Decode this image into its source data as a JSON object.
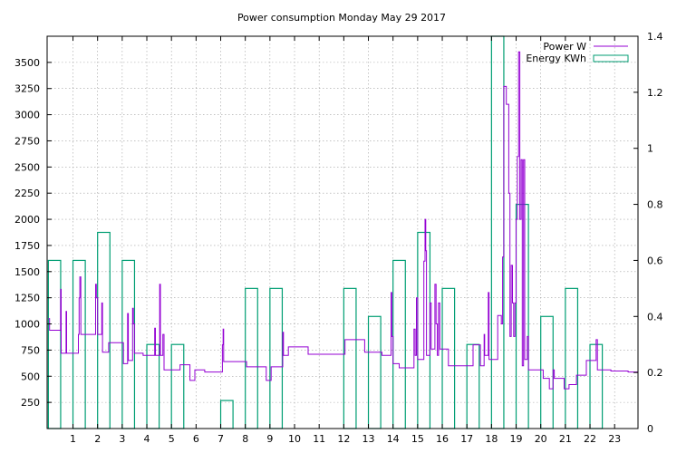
{
  "colors": {
    "power": "#9400d3",
    "energy": "#009e73",
    "grid": "#a0a0a0",
    "axis": "#000000"
  },
  "chart_data": {
    "type": "line",
    "title": "Power consumption Monday May 29 2017",
    "grid": true,
    "legend_position": "top-right",
    "xlim": [
      -0.05,
      23.95
    ],
    "ylim": [
      0,
      3750
    ],
    "y2lim": [
      0,
      1.4
    ],
    "x_ticks": [
      1,
      2,
      3,
      4,
      5,
      6,
      7,
      8,
      9,
      10,
      11,
      12,
      13,
      14,
      15,
      16,
      17,
      18,
      19,
      20,
      21,
      22,
      23
    ],
    "x_tick_labels": [
      "1",
      "2",
      "3",
      "4",
      "5",
      "6",
      "7",
      "8",
      "9",
      "10",
      "11",
      "12",
      "13",
      "14",
      "15",
      "16",
      "17",
      "18",
      "19",
      "20",
      "21",
      "22",
      "23"
    ],
    "y_ticks": [
      250,
      500,
      750,
      1000,
      1250,
      1500,
      1750,
      2000,
      2250,
      2500,
      2750,
      3000,
      3250,
      3500
    ],
    "y_tick_labels": [
      "250",
      "500",
      "750",
      "1000",
      "1250",
      "1500",
      "1750",
      "2000",
      "2250",
      "2500",
      "2750",
      "3000",
      "3250",
      "3500"
    ],
    "y2_ticks": [
      0,
      0.2,
      0.4,
      0.6,
      0.8,
      1,
      1.2,
      1.4
    ],
    "y2_tick_labels": [
      "0",
      "0.2",
      "0.4",
      "0.6",
      "0.8",
      "1",
      "1.2",
      "1.4"
    ],
    "series": [
      {
        "name": "Power W",
        "axis": "y1",
        "style": "steps",
        "points": [
          [
            0,
            1050
          ],
          [
            0.05,
            940
          ],
          [
            0.45,
            940
          ],
          [
            0.5,
            1330
          ],
          [
            0.52,
            720
          ],
          [
            0.7,
            720
          ],
          [
            0.72,
            1120
          ],
          [
            0.74,
            720
          ],
          [
            1.2,
            720
          ],
          [
            1.22,
            900
          ],
          [
            1.25,
            1250
          ],
          [
            1.28,
            1450
          ],
          [
            1.32,
            900
          ],
          [
            1.9,
            900
          ],
          [
            1.92,
            1380
          ],
          [
            1.95,
            1250
          ],
          [
            2.0,
            900
          ],
          [
            2.15,
            900
          ],
          [
            2.17,
            1200
          ],
          [
            2.2,
            730
          ],
          [
            2.4,
            730
          ],
          [
            2.45,
            820
          ],
          [
            3.0,
            820
          ],
          [
            3.05,
            620
          ],
          [
            3.2,
            620
          ],
          [
            3.22,
            1100
          ],
          [
            3.25,
            650
          ],
          [
            3.4,
            650
          ],
          [
            3.42,
            1150
          ],
          [
            3.45,
            1000
          ],
          [
            3.5,
            720
          ],
          [
            3.8,
            720
          ],
          [
            3.85,
            700
          ],
          [
            4.3,
            700
          ],
          [
            4.32,
            960
          ],
          [
            4.35,
            700
          ],
          [
            4.5,
            700
          ],
          [
            4.52,
            1380
          ],
          [
            4.55,
            700
          ],
          [
            4.62,
            700
          ],
          [
            4.65,
            900
          ],
          [
            4.7,
            560
          ],
          [
            5.3,
            560
          ],
          [
            5.35,
            610
          ],
          [
            5.7,
            610
          ],
          [
            5.75,
            460
          ],
          [
            5.9,
            460
          ],
          [
            5.95,
            560
          ],
          [
            6.3,
            560
          ],
          [
            6.35,
            540
          ],
          [
            7.05,
            540
          ],
          [
            7.07,
            800
          ],
          [
            7.1,
            950
          ],
          [
            7.12,
            640
          ],
          [
            8.0,
            640
          ],
          [
            8.05,
            590
          ],
          [
            8.8,
            590
          ],
          [
            8.85,
            460
          ],
          [
            9.0,
            460
          ],
          [
            9.05,
            590
          ],
          [
            9.5,
            590
          ],
          [
            9.52,
            920
          ],
          [
            9.55,
            700
          ],
          [
            9.7,
            700
          ],
          [
            9.75,
            780
          ],
          [
            10.5,
            780
          ],
          [
            10.55,
            710
          ],
          [
            12.0,
            710
          ],
          [
            12.05,
            850
          ],
          [
            12.8,
            850
          ],
          [
            12.85,
            730
          ],
          [
            13.5,
            730
          ],
          [
            13.55,
            700
          ],
          [
            13.9,
            700
          ],
          [
            13.92,
            1300
          ],
          [
            13.95,
            880
          ],
          [
            14.0,
            620
          ],
          [
            14.2,
            620
          ],
          [
            14.25,
            580
          ],
          [
            14.8,
            580
          ],
          [
            14.85,
            950
          ],
          [
            14.9,
            700
          ],
          [
            14.95,
            1250
          ],
          [
            15.0,
            660
          ],
          [
            15.2,
            660
          ],
          [
            15.25,
            1600
          ],
          [
            15.3,
            2000
          ],
          [
            15.33,
            1700
          ],
          [
            15.36,
            700
          ],
          [
            15.5,
            1200
          ],
          [
            15.55,
            760
          ],
          [
            15.7,
            1380
          ],
          [
            15.75,
            1000
          ],
          [
            15.8,
            700
          ],
          [
            15.85,
            1200
          ],
          [
            15.9,
            760
          ],
          [
            16.2,
            760
          ],
          [
            16.25,
            600
          ],
          [
            17.2,
            600
          ],
          [
            17.25,
            800
          ],
          [
            17.5,
            800
          ],
          [
            17.55,
            600
          ],
          [
            17.65,
            600
          ],
          [
            17.7,
            900
          ],
          [
            17.72,
            700
          ],
          [
            17.85,
            700
          ],
          [
            17.87,
            1300
          ],
          [
            17.9,
            660
          ],
          [
            18.2,
            660
          ],
          [
            18.25,
            1080
          ],
          [
            18.4,
            1000
          ],
          [
            18.45,
            1640
          ],
          [
            18.5,
            3270
          ],
          [
            18.6,
            3100
          ],
          [
            18.7,
            2250
          ],
          [
            18.75,
            880
          ],
          [
            18.8,
            1560
          ],
          [
            18.85,
            1200
          ],
          [
            18.9,
            880
          ],
          [
            18.95,
            1200
          ],
          [
            19.0,
            2000
          ],
          [
            19.05,
            2600
          ],
          [
            19.1,
            3600
          ],
          [
            19.15,
            2000
          ],
          [
            19.2,
            2570
          ],
          [
            19.25,
            600
          ],
          [
            19.3,
            2570
          ],
          [
            19.35,
            660
          ],
          [
            19.4,
            660
          ],
          [
            19.45,
            880
          ],
          [
            19.5,
            560
          ],
          [
            20.0,
            560
          ],
          [
            20.1,
            480
          ],
          [
            20.3,
            480
          ],
          [
            20.35,
            380
          ],
          [
            20.45,
            380
          ],
          [
            20.5,
            560
          ],
          [
            20.55,
            480
          ],
          [
            20.9,
            480
          ],
          [
            20.95,
            380
          ],
          [
            21.1,
            380
          ],
          [
            21.15,
            420
          ],
          [
            21.4,
            420
          ],
          [
            21.45,
            510
          ],
          [
            21.8,
            510
          ],
          [
            21.85,
            650
          ],
          [
            22.2,
            650
          ],
          [
            22.25,
            850
          ],
          [
            22.3,
            560
          ],
          [
            22.8,
            560
          ],
          [
            22.85,
            550
          ],
          [
            23.5,
            550
          ],
          [
            23.55,
            540
          ],
          [
            23.95,
            540
          ]
        ]
      },
      {
        "name": "Energy KWh",
        "axis": "y2",
        "style": "boxes",
        "boxes": [
          [
            0,
            0.6
          ],
          [
            1,
            0.6
          ],
          [
            2,
            0.7
          ],
          [
            3,
            0.6
          ],
          [
            4,
            0.3
          ],
          [
            5,
            0.3
          ],
          [
            6,
            0.0
          ],
          [
            7,
            0.1
          ],
          [
            8,
            0.5
          ],
          [
            9,
            0.5
          ],
          [
            10,
            0.0
          ],
          [
            11,
            0.0
          ],
          [
            12,
            0.5
          ],
          [
            13,
            0.4
          ],
          [
            14,
            0.6
          ],
          [
            15,
            0.7
          ],
          [
            16,
            0.5
          ],
          [
            17,
            0.3
          ],
          [
            18,
            1.4
          ],
          [
            19,
            0.8
          ],
          [
            20,
            0.4
          ],
          [
            21,
            0.5
          ],
          [
            22,
            0.3
          ],
          [
            23,
            0.0
          ]
        ],
        "box_width": 0.5
      }
    ]
  }
}
